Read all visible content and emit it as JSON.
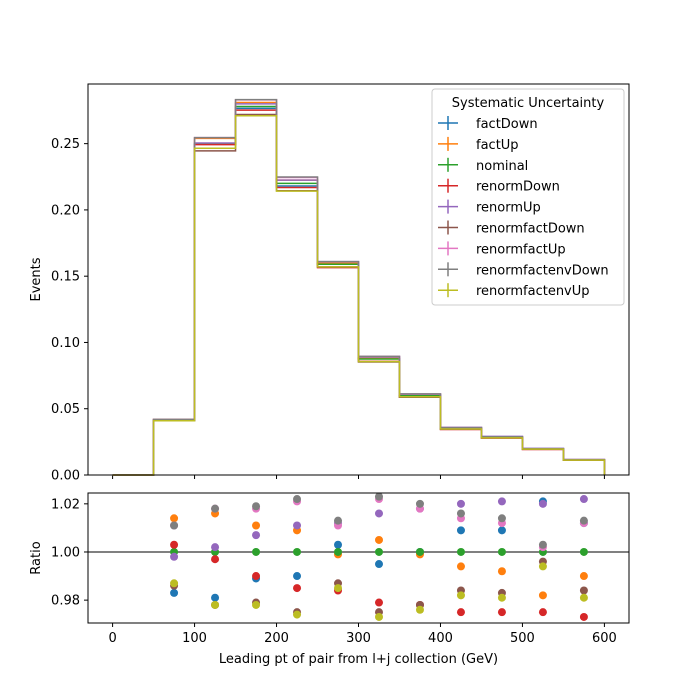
{
  "chart_data": [
    {
      "type": "line",
      "panel": "main",
      "drawstyle": "steps",
      "xlabel": "",
      "ylabel": "Events",
      "xlim": [
        -30,
        630
      ],
      "ylim": [
        0,
        0.295
      ],
      "xticks": [
        0,
        100,
        200,
        300,
        400,
        500,
        600
      ],
      "xtick_labels_shown": false,
      "yticks": [
        0.0,
        0.05,
        0.1,
        0.15,
        0.2,
        0.25
      ],
      "ytick_labels": [
        "0.00",
        "0.05",
        "0.10",
        "0.15",
        "0.20",
        "0.25"
      ],
      "bin_edges": [
        0,
        50,
        100,
        150,
        200,
        250,
        300,
        350,
        400,
        450,
        500,
        550,
        600
      ],
      "legend": {
        "title": "Systematic Uncertainty",
        "placement": "top-right"
      },
      "series": [
        {
          "name": "factDown",
          "color": "#1f77b4",
          "values": [
            0.0,
            0.0412,
            0.2495,
            0.2766,
            0.218,
            0.1593,
            0.0878,
            0.0605,
            0.0355,
            0.0285,
            0.0199,
            0.0114
          ]
        },
        {
          "name": "factUp",
          "color": "#ff7f0e",
          "values": [
            0.0,
            0.042,
            0.254,
            0.281,
            0.2225,
            0.16,
            0.088,
            0.06,
            0.035,
            0.0285,
            0.0195,
            0.0115
          ]
        },
        {
          "name": "nominal",
          "color": "#2ca02c",
          "values": [
            0.0,
            0.0415,
            0.25,
            0.278,
            0.22,
            0.159,
            0.0875,
            0.06,
            0.0352,
            0.0285,
            0.0197,
            0.0114
          ]
        },
        {
          "name": "renormDown",
          "color": "#d62728",
          "values": [
            0.0,
            0.0416,
            0.2493,
            0.2753,
            0.2169,
            0.1565,
            0.0857,
            0.0587,
            0.0343,
            0.0278,
            0.0192,
            0.0111
          ]
        },
        {
          "name": "renormUp",
          "color": "#9467bd",
          "values": [
            0.0,
            0.0414,
            0.2505,
            0.28,
            0.2225,
            0.161,
            0.089,
            0.061,
            0.0359,
            0.0291,
            0.0201,
            0.0117
          ]
        },
        {
          "name": "renormfactDown",
          "color": "#8c564b",
          "values": [
            0.0,
            0.0409,
            0.2445,
            0.272,
            0.2145,
            0.157,
            0.0853,
            0.0587,
            0.0346,
            0.028,
            0.0195,
            0.0112
          ]
        },
        {
          "name": "renormfactUp",
          "color": "#e377c2",
          "values": [
            0.0,
            0.042,
            0.2545,
            0.283,
            0.2245,
            0.1608,
            0.0895,
            0.061,
            0.0357,
            0.0289,
            0.0198,
            0.0116
          ]
        },
        {
          "name": "renormfactenvDown",
          "color": "#7f7f7f",
          "values": [
            0.0,
            0.042,
            0.2545,
            0.2832,
            0.2248,
            0.161,
            0.0895,
            0.0612,
            0.0357,
            0.0289,
            0.0198,
            0.0116
          ]
        },
        {
          "name": "renormfactenvUp",
          "color": "#bcbd22",
          "values": [
            0.0,
            0.0409,
            0.2465,
            0.271,
            0.2142,
            0.157,
            0.0855,
            0.059,
            0.0347,
            0.028,
            0.0195,
            0.0112
          ]
        }
      ]
    },
    {
      "type": "scatter",
      "panel": "ratio",
      "xlabel": "Leading pt of pair from l+j collection (GeV)",
      "ylabel": "Ratio",
      "xlim": [
        -30,
        630
      ],
      "ylim": [
        0.9705,
        1.0245
      ],
      "xticks": [
        0,
        100,
        200,
        300,
        400,
        500,
        600
      ],
      "xtick_labels": [
        "0",
        "100",
        "200",
        "300",
        "400",
        "500",
        "600"
      ],
      "yticks": [
        0.98,
        1.0,
        1.02
      ],
      "ytick_labels": [
        "0.98",
        "1.00",
        "1.02"
      ],
      "reference_line": 1.0,
      "x": [
        75,
        125,
        175,
        225,
        275,
        325,
        375,
        425,
        475,
        525,
        575
      ],
      "series": [
        {
          "name": "factDown",
          "color": "#1f77b4",
          "values": [
            0.983,
            0.981,
            0.989,
            0.99,
            1.003,
            0.995,
            1.0,
            1.009,
            1.009,
            1.021,
            1.012
          ]
        },
        {
          "name": "factUp",
          "color": "#ff7f0e",
          "values": [
            1.014,
            1.016,
            1.011,
            1.009,
            0.999,
            1.005,
            0.999,
            0.994,
            0.992,
            0.982,
            0.99
          ]
        },
        {
          "name": "nominal",
          "color": "#2ca02c",
          "values": [
            1.0,
            1.0,
            1.0,
            1.0,
            1.0,
            1.0,
            1.0,
            1.0,
            1.0,
            1.0,
            1.0
          ]
        },
        {
          "name": "renormDown",
          "color": "#d62728",
          "values": [
            1.003,
            0.997,
            0.99,
            0.985,
            0.984,
            0.979,
            0.978,
            0.975,
            0.975,
            0.975,
            0.973
          ]
        },
        {
          "name": "renormUp",
          "color": "#9467bd",
          "values": [
            0.998,
            1.002,
            1.007,
            1.011,
            1.012,
            1.016,
            1.018,
            1.02,
            1.021,
            1.02,
            1.022
          ]
        },
        {
          "name": "renormfactDown",
          "color": "#8c564b",
          "values": [
            0.986,
            0.978,
            0.979,
            0.975,
            0.987,
            0.975,
            0.978,
            0.984,
            0.983,
            0.996,
            0.984
          ]
        },
        {
          "name": "renormfactUp",
          "color": "#e377c2",
          "values": [
            1.011,
            1.018,
            1.018,
            1.021,
            1.011,
            1.022,
            1.018,
            1.014,
            1.012,
            1.002,
            1.012
          ]
        },
        {
          "name": "renormfactenvDown",
          "color": "#7f7f7f",
          "values": [
            1.011,
            1.018,
            1.019,
            1.022,
            1.013,
            1.023,
            1.02,
            1.016,
            1.014,
            1.003,
            1.013
          ]
        },
        {
          "name": "renormfactenvUp",
          "color": "#bcbd22",
          "values": [
            0.987,
            0.978,
            0.978,
            0.974,
            0.985,
            0.973,
            0.976,
            0.982,
            0.981,
            0.994,
            0.981
          ]
        }
      ]
    }
  ]
}
